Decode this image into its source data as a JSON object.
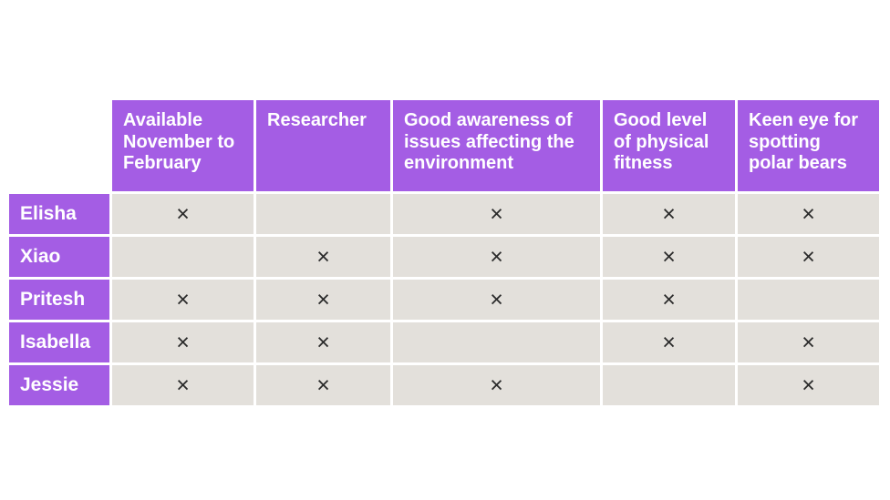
{
  "colors": {
    "header_purple": "#a45de4",
    "cell_gray": "#e3e0db",
    "mark_color": "#2b2b2b",
    "background": "#ffffff",
    "header_text": "#ffffff"
  },
  "table": {
    "columns": [
      "Available November to February",
      "Researcher",
      "Good awareness of issues affecting the environment",
      "Good level of physical fitness",
      "Keen eye for spotting polar bears"
    ],
    "rows": [
      {
        "label": "Elisha",
        "marks": [
          "×",
          "",
          "×",
          "×",
          "×"
        ]
      },
      {
        "label": "Xiao",
        "marks": [
          "",
          "×",
          "×",
          "×",
          "×"
        ]
      },
      {
        "label": "Pritesh",
        "marks": [
          "×",
          "×",
          "×",
          "×",
          ""
        ]
      },
      {
        "label": "Isabella",
        "marks": [
          "×",
          "×",
          "",
          "×",
          "×"
        ]
      },
      {
        "label": "Jessie",
        "marks": [
          "×",
          "×",
          "×",
          "",
          "×"
        ]
      }
    ]
  },
  "chart_data": {
    "type": "table",
    "title": "",
    "columns": [
      "Available November to February",
      "Researcher",
      "Good awareness of issues affecting the environment",
      "Good level of physical fitness",
      "Keen eye for spotting polar bears"
    ],
    "rows": [
      {
        "name": "Elisha",
        "values": [
          true,
          false,
          true,
          true,
          true
        ]
      },
      {
        "name": "Xiao",
        "values": [
          false,
          true,
          true,
          true,
          true
        ]
      },
      {
        "name": "Pritesh",
        "values": [
          true,
          true,
          true,
          true,
          false
        ]
      },
      {
        "name": "Isabella",
        "values": [
          true,
          true,
          false,
          true,
          true
        ]
      },
      {
        "name": "Jessie",
        "values": [
          true,
          true,
          true,
          false,
          true
        ]
      }
    ],
    "mark_glyph": "×",
    "legend_position": "none",
    "grid": false
  }
}
